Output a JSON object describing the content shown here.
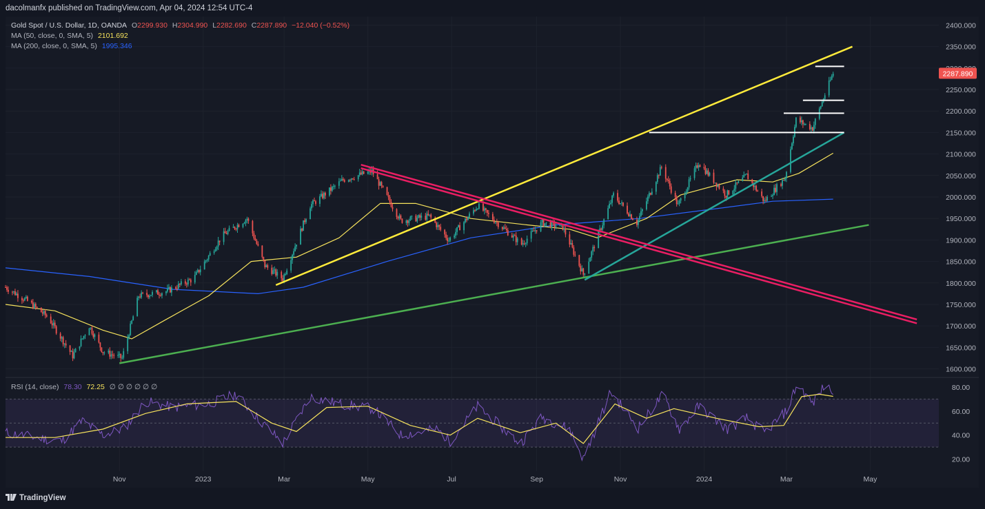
{
  "attribution": "dacolmanfx published on TradingView.com, Apr 04, 2024 12:54 UTC-4",
  "legend": {
    "title": "Gold Spot / U.S. Dollar, 1D, OANDA",
    "o_label": "O",
    "o_value": "2299.930",
    "h_label": "H",
    "h_value": "2304.990",
    "l_label": "L",
    "l_value": "2282.690",
    "c_label": "C",
    "c_value": "2287.890",
    "change": "−12.040 (−0.52%)",
    "ma50_label": "MA (50, close, 0, SMA, 5)",
    "ma50_value": "2101.692",
    "ma200_label": "MA (200, close, 0, SMA, 5)",
    "ma200_value": "1995.346",
    "rsi_label": "RSI (14, close)",
    "rsi_value": "78.30",
    "rsi_ma_value": "72.25",
    "rsi_extra": "∅ ∅ ∅ ∅ ∅ ∅"
  },
  "footer": {
    "brand": "TradingView"
  },
  "colors": {
    "up": "#26a69a",
    "down": "#ef5350",
    "ma50": "#f7e35d",
    "ma200": "#2962ff",
    "rsi": "#7e57c2",
    "rsi_ma": "#f7e35d",
    "trend_yellow": "#ffeb3b",
    "trend_green": "#4caf50",
    "trend_teal": "#26a69a",
    "trend_pink": "#e91e63",
    "level_white": "#ffffff"
  },
  "chart_data": [
    {
      "type": "candlestick",
      "title": "Gold Spot / U.S. Dollar, 1D, OANDA",
      "x_ticks": [
        "Nov",
        "2023",
        "Mar",
        "May",
        "Jul",
        "Sep",
        "Nov",
        "2024",
        "Mar",
        "May"
      ],
      "x_range": [
        "2022-08-10",
        "2024-06-20"
      ],
      "y_ticks": [
        "1600.000",
        "1650.000",
        "1700.000",
        "1750.000",
        "1800.000",
        "1850.000",
        "1900.000",
        "1950.000",
        "2000.000",
        "2050.000",
        "2100.000",
        "2150.000",
        "2200.000",
        "2250.000",
        "2300.000",
        "2350.000",
        "2400.000"
      ],
      "ylim": [
        1580,
        2420
      ],
      "last_price_label": "2287.890",
      "last_price": 2287.89,
      "grid": true,
      "price_path": [
        [
          "2022-08-10",
          1790
        ],
        [
          "2022-08-25",
          1760
        ],
        [
          "2022-09-10",
          1720
        ],
        [
          "2022-09-28",
          1630
        ],
        [
          "2022-10-10",
          1700
        ],
        [
          "2022-10-20",
          1640
        ],
        [
          "2022-11-03",
          1625
        ],
        [
          "2022-11-15",
          1770
        ],
        [
          "2022-12-05",
          1780
        ],
        [
          "2022-12-25",
          1810
        ],
        [
          "2023-01-15",
          1910
        ],
        [
          "2023-02-02",
          1950
        ],
        [
          "2023-02-15",
          1840
        ],
        [
          "2023-02-28",
          1810
        ],
        [
          "2023-03-20",
          1980
        ],
        [
          "2023-04-13",
          2040
        ],
        [
          "2023-05-04",
          2060
        ],
        [
          "2023-05-25",
          1945
        ],
        [
          "2023-06-15",
          1955
        ],
        [
          "2023-06-29",
          1900
        ],
        [
          "2023-07-20",
          1980
        ],
        [
          "2023-08-21",
          1890
        ],
        [
          "2023-09-05",
          1940
        ],
        [
          "2023-09-20",
          1930
        ],
        [
          "2023-10-05",
          1820
        ],
        [
          "2023-10-27",
          2005
        ],
        [
          "2023-11-13",
          1940
        ],
        [
          "2023-12-01",
          2070
        ],
        [
          "2023-12-13",
          1980
        ],
        [
          "2023-12-28",
          2080
        ],
        [
          "2024-01-17",
          2005
        ],
        [
          "2024-02-01",
          2050
        ],
        [
          "2024-02-14",
          1990
        ],
        [
          "2024-02-29",
          2045
        ],
        [
          "2024-03-08",
          2180
        ],
        [
          "2024-03-20",
          2160
        ],
        [
          "2024-03-28",
          2230
        ],
        [
          "2024-04-04",
          2288
        ]
      ],
      "ma50": [
        [
          "2022-08-10",
          1750
        ],
        [
          "2022-09-15",
          1735
        ],
        [
          "2022-10-20",
          1690
        ],
        [
          "2022-11-10",
          1670
        ],
        [
          "2022-12-05",
          1715
        ],
        [
          "2023-01-05",
          1770
        ],
        [
          "2023-02-05",
          1850
        ],
        [
          "2023-03-10",
          1860
        ],
        [
          "2023-04-10",
          1905
        ],
        [
          "2023-05-10",
          1985
        ],
        [
          "2023-06-05",
          1985
        ],
        [
          "2023-07-15",
          1950
        ],
        [
          "2023-08-25",
          1935
        ],
        [
          "2023-09-25",
          1925
        ],
        [
          "2023-10-15",
          1905
        ],
        [
          "2023-11-20",
          1950
        ],
        [
          "2023-12-15",
          2005
        ],
        [
          "2024-01-25",
          2040
        ],
        [
          "2024-02-20",
          2035
        ],
        [
          "2024-03-10",
          2055
        ],
        [
          "2024-04-04",
          2102
        ]
      ],
      "ma200": [
        [
          "2022-08-10",
          1835
        ],
        [
          "2022-10-10",
          1815
        ],
        [
          "2022-12-10",
          1785
        ],
        [
          "2023-02-10",
          1775
        ],
        [
          "2023-03-15",
          1790
        ],
        [
          "2023-05-15",
          1850
        ],
        [
          "2023-07-15",
          1905
        ],
        [
          "2023-09-15",
          1935
        ],
        [
          "2023-11-15",
          1950
        ],
        [
          "2024-01-15",
          1975
        ],
        [
          "2024-02-20",
          1990
        ],
        [
          "2024-04-04",
          1995
        ]
      ],
      "trendlines": [
        {
          "color": "yellow",
          "points": [
            [
              "2023-02-23",
              1795
            ],
            [
              "2024-04-18",
              2350
            ]
          ]
        },
        {
          "color": "green",
          "points": [
            [
              "2022-11-01",
              1613
            ],
            [
              "2024-04-30",
              1935
            ]
          ]
        },
        {
          "color": "teal",
          "points": [
            [
              "2023-10-06",
              1807
            ],
            [
              "2024-04-12",
              2150
            ]
          ]
        },
        {
          "color": "pink",
          "points": [
            [
              "2023-04-26",
              2075
            ],
            [
              "2024-06-04",
              1715
            ]
          ]
        },
        {
          "color": "pink",
          "points": [
            [
              "2023-04-26",
              2067
            ],
            [
              "2024-06-04",
              1706
            ]
          ]
        }
      ],
      "horizontal_levels": [
        {
          "y": 2150,
          "from": "2023-11-22",
          "to": "2024-04-12"
        },
        {
          "y": 2195,
          "from": "2024-02-28",
          "to": "2024-04-12"
        },
        {
          "y": 2225,
          "from": "2024-03-13",
          "to": "2024-04-12"
        },
        {
          "y": 2304,
          "from": "2024-03-22",
          "to": "2024-04-12"
        }
      ]
    },
    {
      "type": "line",
      "title": "RSI (14, close)",
      "y_ticks": [
        "20.00",
        "40.00",
        "60.00",
        "80.00"
      ],
      "ylim": [
        10,
        88
      ],
      "bands": [
        30,
        50,
        70
      ],
      "series": [
        {
          "name": "RSI",
          "points": [
            [
              "2022-08-10",
              42
            ],
            [
              "2022-09-01",
              38
            ],
            [
              "2022-09-20",
              35
            ],
            [
              "2022-10-05",
              52
            ],
            [
              "2022-10-20",
              40
            ],
            [
              "2022-11-05",
              46
            ],
            [
              "2022-11-20",
              68
            ],
            [
              "2022-12-10",
              63
            ],
            [
              "2023-01-05",
              66
            ],
            [
              "2023-01-25",
              74
            ],
            [
              "2023-02-10",
              54
            ],
            [
              "2023-02-28",
              33
            ],
            [
              "2023-03-20",
              72
            ],
            [
              "2023-04-10",
              66
            ],
            [
              "2023-05-05",
              62
            ],
            [
              "2023-05-25",
              40
            ],
            [
              "2023-06-20",
              45
            ],
            [
              "2023-06-30",
              35
            ],
            [
              "2023-07-20",
              64
            ],
            [
              "2023-08-20",
              33
            ],
            [
              "2023-09-05",
              55
            ],
            [
              "2023-09-25",
              45
            ],
            [
              "2023-10-05",
              20
            ],
            [
              "2023-10-25",
              76
            ],
            [
              "2023-11-14",
              46
            ],
            [
              "2023-12-02",
              74
            ],
            [
              "2023-12-14",
              45
            ],
            [
              "2023-12-28",
              64
            ],
            [
              "2024-01-18",
              45
            ],
            [
              "2024-02-01",
              54
            ],
            [
              "2024-02-14",
              42
            ],
            [
              "2024-03-01",
              60
            ],
            [
              "2024-03-09",
              83
            ],
            [
              "2024-03-20",
              66
            ],
            [
              "2024-03-28",
              80
            ],
            [
              "2024-04-04",
              78.3
            ]
          ]
        },
        {
          "name": "RSI-based MA",
          "points": [
            [
              "2022-08-10",
              38
            ],
            [
              "2022-09-15",
              38
            ],
            [
              "2022-10-20",
              45
            ],
            [
              "2022-11-20",
              58
            ],
            [
              "2022-12-20",
              66
            ],
            [
              "2023-01-25",
              68
            ],
            [
              "2023-02-20",
              50
            ],
            [
              "2023-03-10",
              43
            ],
            [
              "2023-04-01",
              63
            ],
            [
              "2023-05-01",
              64
            ],
            [
              "2023-06-01",
              48
            ],
            [
              "2023-06-30",
              40
            ],
            [
              "2023-07-20",
              54
            ],
            [
              "2023-08-20",
              42
            ],
            [
              "2023-09-15",
              50
            ],
            [
              "2023-10-05",
              33
            ],
            [
              "2023-10-28",
              66
            ],
            [
              "2023-11-20",
              54
            ],
            [
              "2023-12-10",
              62
            ],
            [
              "2024-01-10",
              54
            ],
            [
              "2024-02-10",
              47
            ],
            [
              "2024-02-28",
              48
            ],
            [
              "2024-03-12",
              72
            ],
            [
              "2024-03-25",
              74
            ],
            [
              "2024-04-04",
              72.25
            ]
          ]
        }
      ]
    }
  ]
}
